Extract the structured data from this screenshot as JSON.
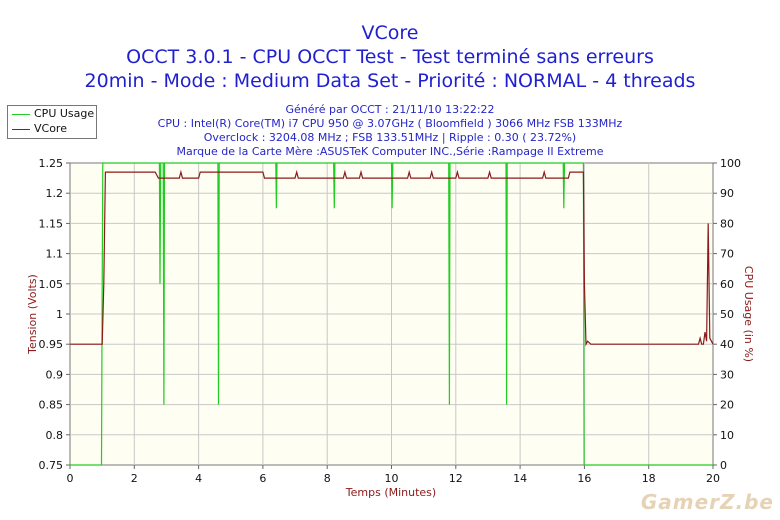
{
  "chart_data": {
    "type": "line",
    "title": "VCore",
    "subtitle_lines": [
      "OCCT 3.0.1 - CPU OCCT Test - Test terminé sans erreurs",
      "20min - Mode : Medium Data Set - Priorité : NORMAL - 4 threads"
    ],
    "info_lines": [
      "Généré par OCCT : 21/11/10 13:22:22",
      "CPU : Intel(R) Core(TM) i7 CPU 950 @ 3.07GHz ( Bloomfield ) 3066 MHz FSB 133MHz",
      "Overclock : 3204.08 MHz ; FSB 133.51MHz | Ripple : 0.30 ( 23.72%)",
      "Marque de la Carte Mère :ASUSTeK Computer INC.,Série :Rampage II Extreme"
    ],
    "xlabel": "Temps (Minutes)",
    "ylabel_left": "Tension (Volts)",
    "ylabel_right": "CPU Usage (in %)",
    "xlim": [
      0,
      20
    ],
    "ylim_left": [
      0.75,
      1.25
    ],
    "ylim_right": [
      0,
      100
    ],
    "x_ticks": [
      "0",
      "2",
      "4",
      "6",
      "8",
      "10",
      "12",
      "14",
      "16",
      "18",
      "20"
    ],
    "y_left_ticks": [
      "0.75",
      "0.8",
      "0.85",
      "0.9",
      "0.95",
      "1",
      "1.05",
      "1.1",
      "1.15",
      "1.2",
      "1.25"
    ],
    "y_right_ticks": [
      "0",
      "10",
      "20",
      "30",
      "40",
      "50",
      "60",
      "70",
      "80",
      "90",
      "100"
    ],
    "grid": true,
    "legend_position": "top-left-outside",
    "series": [
      {
        "name": "CPU Usage",
        "axis": "right",
        "color": "#22cc22",
        "points": [
          [
            0,
            0
          ],
          [
            0.98,
            0
          ],
          [
            1.0,
            60
          ],
          [
            1.02,
            100
          ],
          [
            2.78,
            100
          ],
          [
            2.8,
            60
          ],
          [
            2.82,
            100
          ],
          [
            2.9,
            100
          ],
          [
            2.92,
            20
          ],
          [
            2.94,
            100
          ],
          [
            4.6,
            100
          ],
          [
            4.62,
            20
          ],
          [
            4.64,
            100
          ],
          [
            6.4,
            100
          ],
          [
            6.42,
            85
          ],
          [
            6.44,
            100
          ],
          [
            8.2,
            100
          ],
          [
            8.22,
            85
          ],
          [
            8.24,
            100
          ],
          [
            10.0,
            100
          ],
          [
            10.02,
            85
          ],
          [
            10.04,
            100
          ],
          [
            11.78,
            100
          ],
          [
            11.8,
            20
          ],
          [
            11.82,
            100
          ],
          [
            13.56,
            100
          ],
          [
            13.58,
            20
          ],
          [
            13.6,
            100
          ],
          [
            15.34,
            100
          ],
          [
            15.36,
            85
          ],
          [
            15.38,
            100
          ],
          [
            15.97,
            100
          ],
          [
            15.99,
            0
          ],
          [
            20,
            0
          ]
        ]
      },
      {
        "name": "VCore",
        "axis": "left",
        "color": "#8b1a1a",
        "points": [
          [
            0,
            0.95
          ],
          [
            1.0,
            0.95
          ],
          [
            1.05,
            1.05
          ],
          [
            1.1,
            1.235
          ],
          [
            2.65,
            1.235
          ],
          [
            2.7,
            1.23
          ],
          [
            2.75,
            1.225
          ],
          [
            3.4,
            1.225
          ],
          [
            3.45,
            1.235
          ],
          [
            3.5,
            1.225
          ],
          [
            4.0,
            1.225
          ],
          [
            4.05,
            1.235
          ],
          [
            6.0,
            1.235
          ],
          [
            6.05,
            1.225
          ],
          [
            7.0,
            1.225
          ],
          [
            7.05,
            1.235
          ],
          [
            7.1,
            1.225
          ],
          [
            8.5,
            1.225
          ],
          [
            8.55,
            1.235
          ],
          [
            8.6,
            1.225
          ],
          [
            9.0,
            1.225
          ],
          [
            9.05,
            1.235
          ],
          [
            9.1,
            1.225
          ],
          [
            10.5,
            1.225
          ],
          [
            10.55,
            1.235
          ],
          [
            10.6,
            1.225
          ],
          [
            11.2,
            1.225
          ],
          [
            11.25,
            1.235
          ],
          [
            11.3,
            1.225
          ],
          [
            12.0,
            1.225
          ],
          [
            12.05,
            1.235
          ],
          [
            12.1,
            1.225
          ],
          [
            13.0,
            1.225
          ],
          [
            13.05,
            1.235
          ],
          [
            13.1,
            1.225
          ],
          [
            14.7,
            1.225
          ],
          [
            14.75,
            1.235
          ],
          [
            14.8,
            1.225
          ],
          [
            15.5,
            1.225
          ],
          [
            15.55,
            1.235
          ],
          [
            15.97,
            1.235
          ],
          [
            16.0,
            1.05
          ],
          [
            16.05,
            0.95
          ],
          [
            16.1,
            0.955
          ],
          [
            16.2,
            0.95
          ],
          [
            19.55,
            0.95
          ],
          [
            19.6,
            0.96
          ],
          [
            19.65,
            0.95
          ],
          [
            19.7,
            0.95
          ],
          [
            19.75,
            0.97
          ],
          [
            19.8,
            0.955
          ],
          [
            19.85,
            1.15
          ],
          [
            19.9,
            0.96
          ],
          [
            20,
            0.95
          ]
        ]
      }
    ]
  },
  "watermark": "GamerZ.be"
}
